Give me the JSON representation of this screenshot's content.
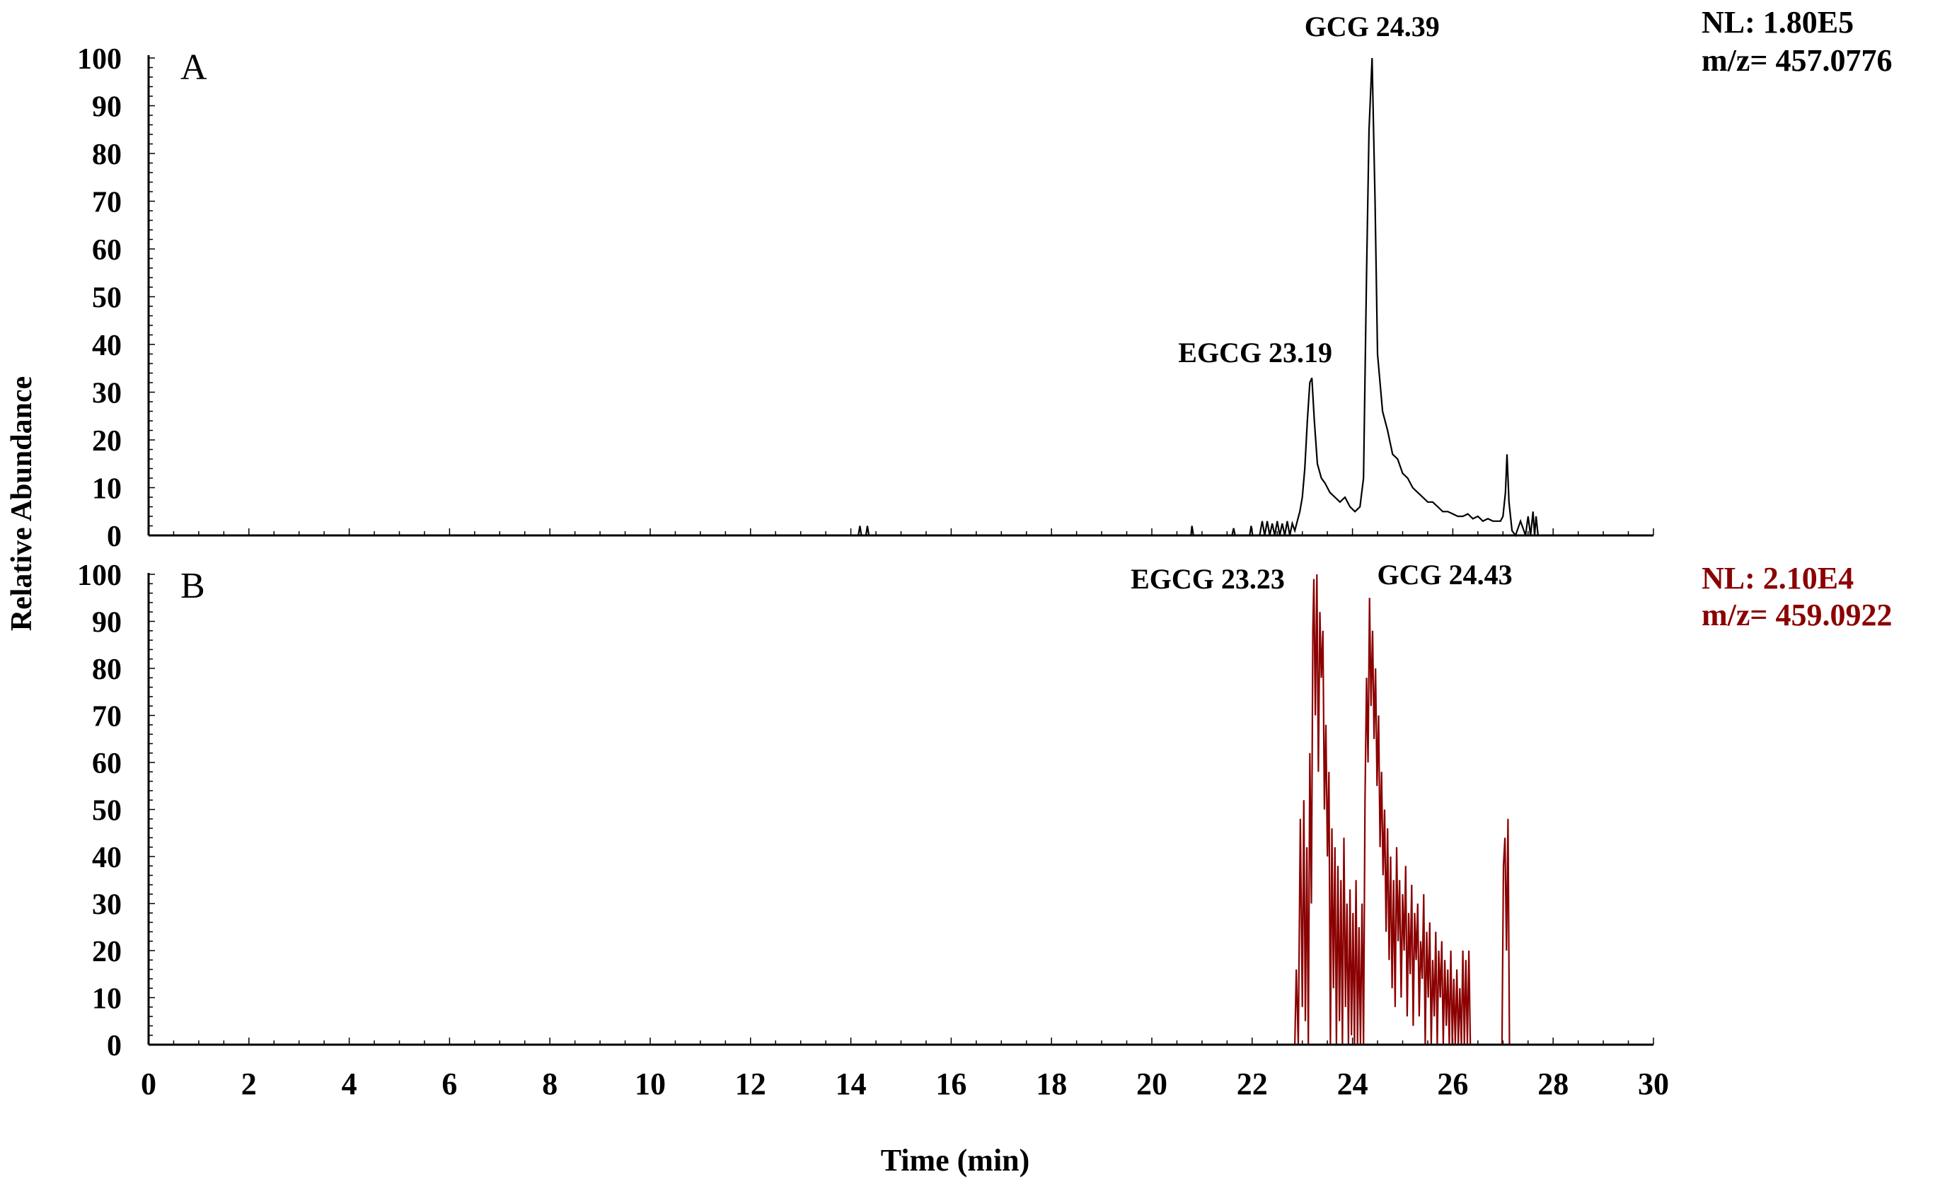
{
  "colors": {
    "panel_a": "#000000",
    "panel_b": "#8b0000",
    "axis": "#000000"
  },
  "chart_data": {
    "type": "line",
    "xlabel": "Time (min)",
    "ylabel": "Relative Abundance",
    "xlim": [
      0,
      30
    ],
    "ylim": [
      0,
      100
    ],
    "x_ticks": [
      "0",
      "2",
      "4",
      "6",
      "8",
      "10",
      "12",
      "14",
      "16",
      "18",
      "20",
      "22",
      "24",
      "26",
      "28",
      "30"
    ],
    "y_ticks": [
      "0",
      "10",
      "20",
      "30",
      "40",
      "50",
      "60",
      "70",
      "80",
      "90",
      "100"
    ],
    "panels": [
      {
        "letter": "A",
        "nl": "NL: 1.80E5",
        "mz": "m/z= 457.0776",
        "peak_labels": [
          {
            "text": "GCG 24.39",
            "x": 24.39,
            "y": 100
          },
          {
            "text": "EGCG 23.19",
            "x": 23.19,
            "y": 33
          }
        ],
        "series": [
          {
            "x": [
              0,
              14.15,
              14.18,
              14.21,
              14.3,
              14.33,
              14.36,
              20.78,
              20.8,
              20.83,
              21.6,
              21.63,
              21.66,
              21.95,
              21.98,
              22.01,
              22.15,
              22.2,
              22.25,
              22.3,
              22.35,
              22.4,
              22.45,
              22.5,
              22.55,
              22.6,
              22.65,
              22.7,
              22.75,
              22.8,
              22.85,
              22.9,
              22.95,
              23.0,
              23.05,
              23.1,
              23.15,
              23.19,
              23.24,
              23.3,
              23.38,
              23.45,
              23.55,
              23.65,
              23.75,
              23.85,
              23.95,
              24.05,
              24.15,
              24.22,
              24.28,
              24.33,
              24.39,
              24.45,
              24.5,
              24.6,
              24.7,
              24.8,
              24.9,
              25.0,
              25.1,
              25.2,
              25.3,
              25.4,
              25.5,
              25.6,
              25.7,
              25.8,
              25.9,
              26.0,
              26.1,
              26.2,
              26.3,
              26.4,
              26.5,
              26.6,
              26.7,
              26.8,
              26.9,
              26.95,
              27.0,
              27.05,
              27.08,
              27.12,
              27.18,
              27.25,
              27.35,
              27.45,
              27.5,
              27.55,
              27.6,
              27.63,
              27.66,
              27.7,
              27.75,
              30
            ],
            "y": [
              0,
              0,
              2,
              0,
              0,
              2,
              0,
              0,
              2,
              0,
              0,
              1.5,
              0,
              0,
              2,
              0,
              0,
              3,
              0,
              3,
              0,
              2.5,
              0,
              3,
              0,
              2.5,
              0,
              3,
              0,
              2.5,
              1,
              3,
              5,
              8,
              14,
              24,
              32,
              33,
              24,
              15,
              12,
              11,
              9,
              8,
              7,
              8,
              6,
              5,
              6,
              12,
              55,
              85,
              100,
              70,
              38,
              26,
              22,
              17,
              16,
              13,
              12,
              10,
              9,
              8,
              7,
              7,
              6,
              5,
              5,
              4.5,
              4,
              4,
              4.5,
              3.5,
              4,
              3,
              3.5,
              3,
              3,
              3,
              4,
              9,
              17,
              7,
              1,
              0,
              3,
              0,
              4,
              0,
              5,
              0,
              4,
              0,
              0,
              0
            ]
          }
        ]
      },
      {
        "letter": "B",
        "nl": "NL: 2.10E4",
        "mz": "m/z= 459.0922",
        "peak_labels": [
          {
            "text": "EGCG 23.23",
            "x": 23.23,
            "y": 100
          },
          {
            "text": "GCG 24.43",
            "x": 24.43,
            "y": 95
          }
        ],
        "series": [
          {
            "x": [
              0,
              22.85,
              22.88,
              22.92,
              22.96,
              23.0,
              23.03,
              23.06,
              23.09,
              23.12,
              23.15,
              23.18,
              23.21,
              23.23,
              23.26,
              23.29,
              23.32,
              23.35,
              23.38,
              23.41,
              23.44,
              23.47,
              23.5,
              23.53,
              23.56,
              23.59,
              23.62,
              23.65,
              23.68,
              23.71,
              23.74,
              23.77,
              23.8,
              23.83,
              23.86,
              23.89,
              23.92,
              23.95,
              23.98,
              24.01,
              24.04,
              24.07,
              24.1,
              24.13,
              24.16,
              24.19,
              24.22,
              24.25,
              24.28,
              24.31,
              24.34,
              24.37,
              24.4,
              24.43,
              24.46,
              24.49,
              24.52,
              24.55,
              24.58,
              24.61,
              24.64,
              24.67,
              24.7,
              24.73,
              24.76,
              24.79,
              24.82,
              24.85,
              24.88,
              24.91,
              24.94,
              24.97,
              25.0,
              25.03,
              25.06,
              25.09,
              25.12,
              25.15,
              25.18,
              25.21,
              25.24,
              25.27,
              25.3,
              25.33,
              25.36,
              25.39,
              25.42,
              25.45,
              25.48,
              25.51,
              25.54,
              25.57,
              25.6,
              25.63,
              25.66,
              25.69,
              25.72,
              25.75,
              25.78,
              25.81,
              25.84,
              25.87,
              25.9,
              25.93,
              25.96,
              25.99,
              26.02,
              26.05,
              26.08,
              26.11,
              26.14,
              26.17,
              26.2,
              26.23,
              26.26,
              26.29,
              26.32,
              26.35,
              26.95,
              26.98,
              27.01,
              27.04,
              27.07,
              27.1,
              27.13,
              30
            ],
            "y": [
              0,
              0,
              16,
              0,
              48,
              8,
              52,
              5,
              42,
              0,
              62,
              30,
              88,
              99,
              70,
              100,
              58,
              92,
              78,
              88,
              50,
              68,
              40,
              58,
              0,
              46,
              12,
              42,
              0,
              38,
              5,
              35,
              0,
              44,
              8,
              30,
              0,
              33,
              2,
              28,
              0,
              35,
              0,
              25,
              0,
              30,
              0,
              52,
              78,
              60,
              95,
              72,
              88,
              65,
              80,
              55,
              70,
              42,
              58,
              36,
              50,
              24,
              46,
              18,
              40,
              12,
              35,
              8,
              42,
              22,
              35,
              10,
              32,
              20,
              38,
              6,
              28,
              15,
              34,
              4,
              28,
              18,
              30,
              6,
              22,
              14,
              32,
              0,
              24,
              10,
              26,
              0,
              18,
              6,
              24,
              0,
              20,
              10,
              22,
              0,
              18,
              4,
              16,
              0,
              20,
              0,
              14,
              0,
              16,
              0,
              12,
              0,
              20,
              0,
              18,
              0,
              20,
              0,
              0,
              0,
              38,
              44,
              20,
              48,
              0,
              0
            ]
          }
        ]
      }
    ]
  }
}
